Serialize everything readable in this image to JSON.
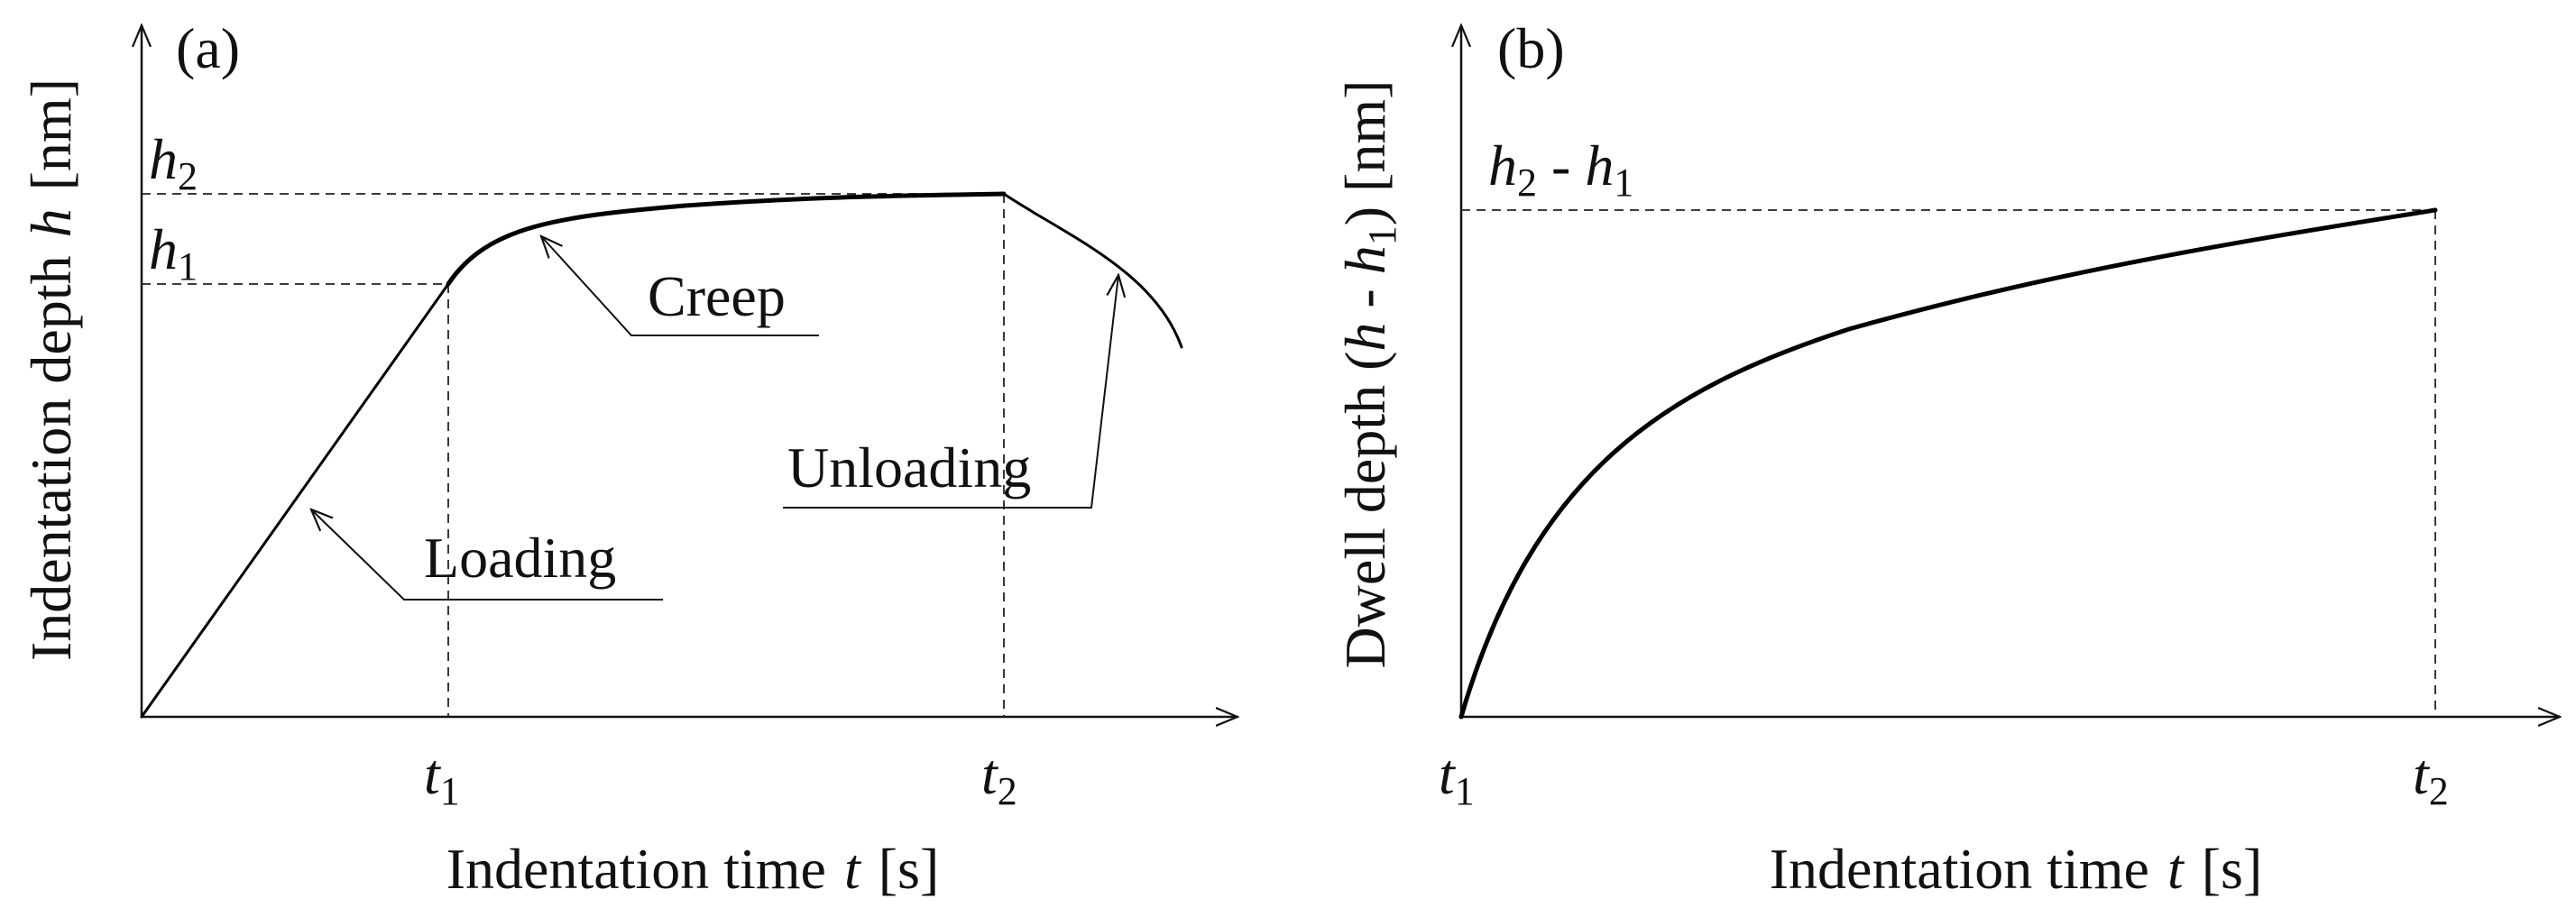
{
  "panel_a": {
    "tag": "(a)",
    "ylabel_text": "Indentation depth",
    "ylabel_var": "h",
    "ylabel_unit": "[nm]",
    "xlabel_text": "Indentation time",
    "xlabel_var": "t",
    "xlabel_unit": "[s]",
    "h2_base": "h",
    "h2_sub": "2",
    "h1_base": "h",
    "h1_sub": "1",
    "t1_base": "t",
    "t1_sub": "1",
    "t2_base": "t",
    "t2_sub": "2",
    "label_creep": "Creep",
    "label_loading": "Loading",
    "label_unloading": "Unloading"
  },
  "panel_b": {
    "tag": "(b)",
    "ylabel_text": "Dwell depth (",
    "ylabel_var1": "h",
    "ylabel_minus": " - ",
    "ylabel_var2": "h",
    "ylabel_sub": "1",
    "ylabel_close": ") [nm]",
    "xlabel_text": "Indentation time",
    "xlabel_var": "t",
    "xlabel_unit": "[s]",
    "top_a": "h",
    "top_a_sub": "2",
    "top_minus": " - ",
    "top_b": "h",
    "top_b_sub": "1",
    "t1_base": "t",
    "t1_sub": "1",
    "t2_base": "t",
    "t2_sub": "2"
  },
  "colors": {
    "ink": "#000000",
    "background": "#ffffff"
  }
}
